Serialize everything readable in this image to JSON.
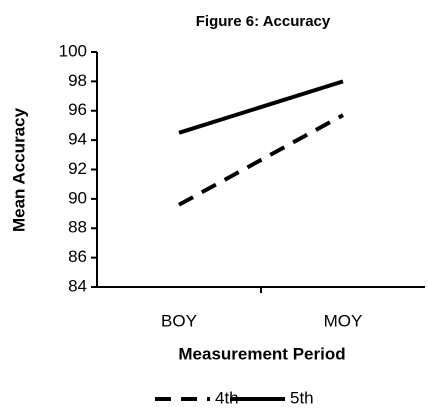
{
  "chart_data": {
    "type": "line",
    "title": "Figure 6: Accuracy",
    "x_label": "Measurement Period",
    "y_label": "Mean Accuracy",
    "categories": [
      "BOY",
      "MOY"
    ],
    "series": [
      {
        "name": "4th",
        "color": "#000000",
        "line_style": "dashed",
        "values": [
          89.6,
          95.7
        ]
      },
      {
        "name": "5th",
        "color": "#000000",
        "line_style": "solid",
        "values": [
          94.5,
          98.0
        ]
      }
    ],
    "ylim": [
      84,
      100
    ],
    "yticks": [
      84,
      86,
      88,
      90,
      92,
      94,
      96,
      98,
      100
    ],
    "grid": false,
    "legend": "bottom"
  }
}
